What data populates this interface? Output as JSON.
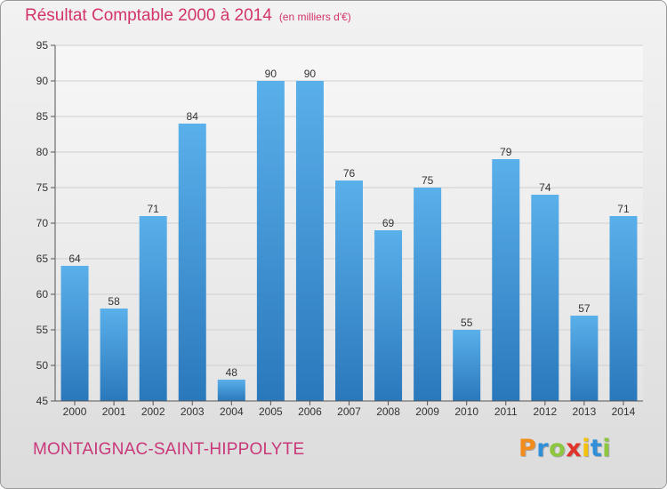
{
  "title": "Résultat Comptable 2000 à 2014",
  "subtitle": "(en milliers d'€)",
  "commune": "MONTAIGNAC-SAINT-HIPPOLYTE",
  "logo": {
    "letters": [
      "P",
      "r",
      "o",
      "x",
      "i",
      "t",
      "i"
    ],
    "colors": [
      "#f28c1c",
      "#2f8fd8",
      "#8dc63f",
      "#e2332a",
      "#f4c20d",
      "#2f8fd8",
      "#8dc63f"
    ]
  },
  "chart_data": {
    "type": "bar",
    "title": "Résultat Comptable 2000 à 2014",
    "subtitle": "(en milliers d'€)",
    "categories": [
      "2000",
      "2001",
      "2002",
      "2003",
      "2004",
      "2005",
      "2006",
      "2007",
      "2008",
      "2009",
      "2010",
      "2011",
      "2012",
      "2013",
      "2014"
    ],
    "values": [
      64,
      58,
      71,
      84,
      48,
      90,
      90,
      76,
      69,
      75,
      55,
      79,
      74,
      57,
      71
    ],
    "ylim": [
      45,
      95
    ],
    "yticks": [
      45,
      50,
      55,
      60,
      65,
      70,
      75,
      80,
      85,
      90,
      95
    ],
    "grid": true,
    "bar_color": "#3c99dc"
  }
}
